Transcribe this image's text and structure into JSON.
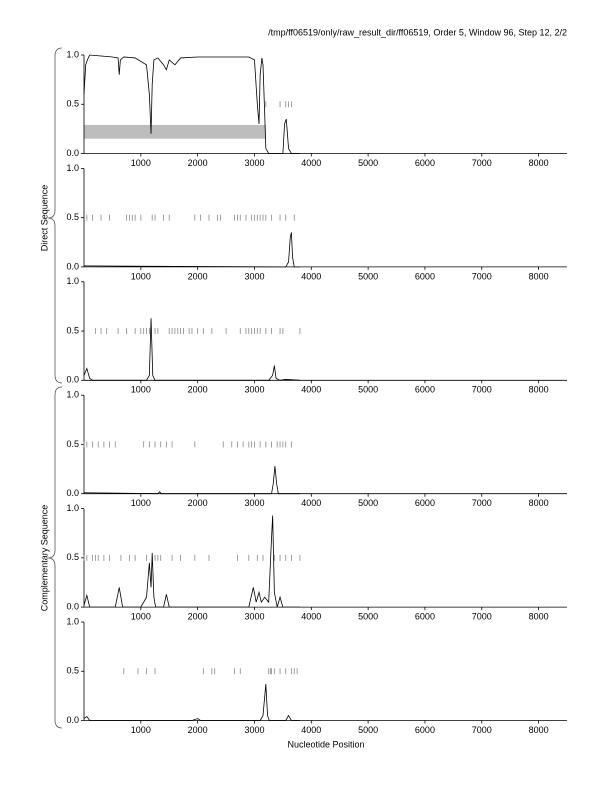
{
  "header": "/tmp/ff06519/only/raw_result_dir/ff06519, Order 5, Window 96, Step 12, 2/2",
  "xlabel": "Nucleotide Position",
  "groups": [
    "Direct Sequence",
    "Complementary Sequence"
  ],
  "chart_data": [
    {
      "type": "line",
      "color": "#000000",
      "marker_color": "#888888",
      "xlim": [
        0,
        8500
      ],
      "ylim": [
        0,
        1
      ],
      "xticks": [
        1000,
        2000,
        3000,
        4000,
        5000,
        6000,
        7000,
        8000
      ],
      "yticks": [
        {
          "value": 0,
          "label": "0.0"
        },
        {
          "value": 0.5,
          "label": "0.5"
        },
        {
          "value": 1,
          "label": "1.0"
        }
      ],
      "highlight": {
        "x": [
          0,
          3200
        ],
        "y": [
          0.15,
          0.29
        ],
        "color": "#bdbdbd"
      },
      "x": [
        0,
        30,
        60,
        100,
        300,
        500,
        600,
        620,
        640,
        700,
        900,
        1100,
        1150,
        1180,
        1200,
        1230,
        1300,
        1400,
        1450,
        1500,
        1600,
        1700,
        2000,
        2500,
        2900,
        3000,
        3050,
        3080,
        3100,
        3130,
        3150,
        3180,
        3200,
        3250,
        3400,
        3500,
        3530,
        3560,
        3600,
        3650,
        3800
      ],
      "values": [
        0.6,
        0.9,
        0.95,
        1,
        0.99,
        0.98,
        0.97,
        0.8,
        0.95,
        0.98,
        0.97,
        0.9,
        0.6,
        0.2,
        0.7,
        0.95,
        0.97,
        0.9,
        0.85,
        0.95,
        0.9,
        0.97,
        0.98,
        0.98,
        0.98,
        0.95,
        0.5,
        0.3,
        0.8,
        0.97,
        0.9,
        0.4,
        0.05,
        0,
        0,
        0,
        0.3,
        0.35,
        0.05,
        0,
        0
      ],
      "markers": [
        3200,
        3450,
        3550,
        3600,
        3650
      ]
    },
    {
      "type": "line",
      "color": "#000000",
      "marker_color": "#888888",
      "xlim": [
        0,
        8500
      ],
      "ylim": [
        0,
        1
      ],
      "xticks": [
        1000,
        2000,
        3000,
        4000,
        5000,
        6000,
        7000,
        8000
      ],
      "yticks": [
        {
          "value": 0,
          "label": "0.0"
        },
        {
          "value": 0.5,
          "label": "0.5"
        },
        {
          "value": 1,
          "label": "1.0"
        }
      ],
      "x": [
        0,
        3550,
        3600,
        3630,
        3650,
        3670,
        3700,
        3800
      ],
      "values": [
        0.01,
        0,
        0.05,
        0.3,
        0.35,
        0.1,
        0,
        0
      ],
      "markers": [
        50,
        150,
        300,
        450,
        750,
        800,
        850,
        900,
        1000,
        1200,
        1250,
        1400,
        1500,
        1950,
        2050,
        2200,
        2350,
        2400,
        2650,
        2700,
        2750,
        2850,
        2950,
        3000,
        3050,
        3100,
        3150,
        3200,
        3300,
        3450,
        3550,
        3700
      ]
    },
    {
      "type": "line",
      "color": "#000000",
      "marker_color": "#888888",
      "xlim": [
        0,
        8500
      ],
      "ylim": [
        0,
        1
      ],
      "xticks": [
        1000,
        2000,
        3000,
        4000,
        5000,
        6000,
        7000,
        8000
      ],
      "yticks": [
        {
          "value": 0,
          "label": "0.0"
        },
        {
          "value": 0.5,
          "label": "0.5"
        },
        {
          "value": 1,
          "label": "1.0"
        }
      ],
      "x": [
        0,
        50,
        100,
        150,
        300,
        1100,
        1150,
        1180,
        1210,
        1250,
        3250,
        3320,
        3350,
        3380,
        3450,
        3550,
        3800
      ],
      "values": [
        0.05,
        0.12,
        0.02,
        0,
        0,
        0,
        0.05,
        0.63,
        0.05,
        0,
        0,
        0.05,
        0.15,
        0.02,
        0,
        0.01,
        0
      ],
      "markers": [
        200,
        300,
        400,
        600,
        750,
        900,
        1000,
        1050,
        1100,
        1150,
        1250,
        1300,
        1500,
        1550,
        1600,
        1650,
        1700,
        1750,
        1850,
        1900,
        2000,
        2100,
        2250,
        2500,
        2750,
        2850,
        2900,
        2950,
        3000,
        3050,
        3100,
        3200,
        3300,
        3450,
        3500,
        3800
      ]
    },
    {
      "type": "line",
      "color": "#000000",
      "marker_color": "#888888",
      "xlim": [
        0,
        8500
      ],
      "ylim": [
        0,
        1
      ],
      "xticks": [
        1000,
        2000,
        3000,
        4000,
        5000,
        6000,
        7000,
        8000
      ],
      "yticks": [
        {
          "value": 0,
          "label": "0.0"
        },
        {
          "value": 0.5,
          "label": "0.5"
        },
        {
          "value": 1,
          "label": "1.0"
        }
      ],
      "x": [
        0,
        1300,
        1330,
        1360,
        3300,
        3330,
        3360,
        3390,
        3420,
        3800
      ],
      "values": [
        0.01,
        0,
        0.02,
        0,
        0,
        0.1,
        0.28,
        0.1,
        0,
        0
      ],
      "markers": [
        0,
        50,
        150,
        250,
        350,
        450,
        550,
        1050,
        1150,
        1250,
        1350,
        1450,
        1550,
        1950,
        2450,
        2600,
        2700,
        2800,
        2900,
        2950,
        3000,
        3100,
        3200,
        3300,
        3400,
        3450,
        3500,
        3550,
        3650
      ]
    },
    {
      "type": "line",
      "color": "#000000",
      "marker_color": "#888888",
      "xlim": [
        0,
        8500
      ],
      "ylim": [
        0,
        1
      ],
      "xticks": [
        1000,
        2000,
        3000,
        4000,
        5000,
        6000,
        7000,
        8000
      ],
      "yticks": [
        {
          "value": 0,
          "label": "0.0"
        },
        {
          "value": 0.5,
          "label": "0.5"
        },
        {
          "value": 1,
          "label": "1.0"
        }
      ],
      "x": [
        0,
        50,
        100,
        550,
        620,
        680,
        1000,
        1100,
        1150,
        1180,
        1200,
        1230,
        1260,
        1400,
        1450,
        1500,
        2900,
        2980,
        3030,
        3080,
        3120,
        3180,
        3250,
        3300,
        3320,
        3350,
        3400,
        3450,
        3500,
        3800
      ],
      "values": [
        0.02,
        0.12,
        0,
        0,
        0.2,
        0,
        0,
        0.1,
        0.45,
        0.2,
        0.55,
        0.1,
        0,
        0,
        0.13,
        0,
        0,
        0.2,
        0.05,
        0.15,
        0.05,
        0.1,
        0.05,
        0.7,
        0.93,
        0.15,
        0,
        0.1,
        0,
        0
      ],
      "markers": [
        0,
        50,
        150,
        200,
        250,
        350,
        450,
        650,
        800,
        900,
        1100,
        1250,
        1300,
        1350,
        1550,
        1700,
        1950,
        2200,
        2700,
        2900,
        3050,
        3150,
        3350,
        3450,
        3550,
        3650,
        3800
      ]
    },
    {
      "type": "line",
      "color": "#000000",
      "marker_color": "#888888",
      "xlim": [
        0,
        8500
      ],
      "ylim": [
        0,
        1
      ],
      "xticks": [
        1000,
        2000,
        3000,
        4000,
        5000,
        6000,
        7000,
        8000
      ],
      "yticks": [
        {
          "value": 0,
          "label": "0.0"
        },
        {
          "value": 0.5,
          "label": "0.5"
        },
        {
          "value": 1,
          "label": "1.0"
        }
      ],
      "x": [
        0,
        50,
        100,
        1900,
        2000,
        2050,
        3100,
        3150,
        3200,
        3230,
        3260,
        3550,
        3600,
        3650,
        3800
      ],
      "values": [
        0.02,
        0.04,
        0,
        0,
        0.02,
        0,
        0,
        0.05,
        0.37,
        0.05,
        0,
        0,
        0.05,
        0,
        0
      ],
      "markers": [
        700,
        950,
        1100,
        1250,
        2100,
        2250,
        2300,
        2650,
        2750,
        3250,
        3280,
        3300,
        3350,
        3450,
        3550,
        3650,
        3700,
        3750
      ]
    }
  ]
}
